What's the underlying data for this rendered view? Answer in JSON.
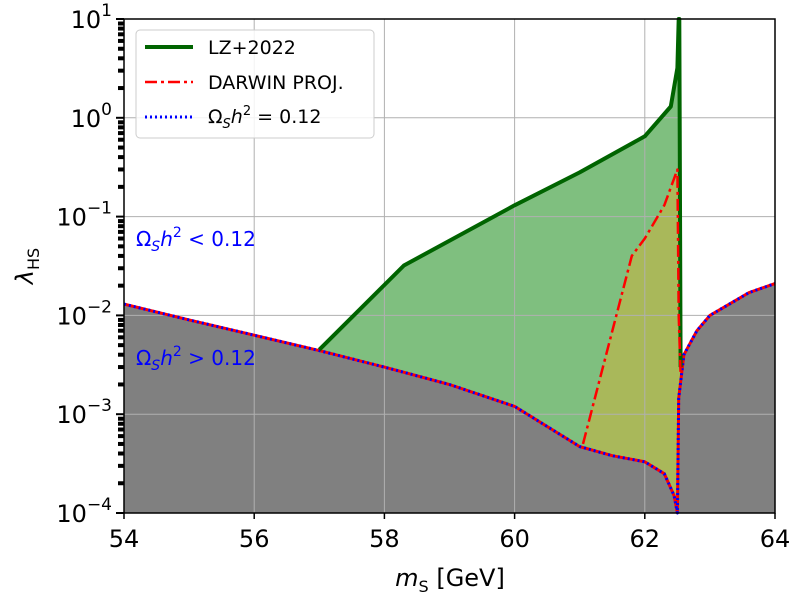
{
  "chart_data": {
    "type": "line",
    "xlabel": {
      "main": "m",
      "sub": "S",
      "suffix": " [GeV]"
    },
    "ylabel": {
      "main": "λ",
      "sub": "HS"
    },
    "xlim": [
      54,
      64
    ],
    "ylim": [
      0.0001,
      10
    ],
    "yscale": "log",
    "grid": true,
    "legend_position": "top-left",
    "x_ticks": [
      54,
      56,
      58,
      60,
      62,
      64
    ],
    "x_tick_labels": [
      "54",
      "56",
      "58",
      "60",
      "62",
      "64"
    ],
    "y_ticks": [
      -4,
      -3,
      -2,
      -1,
      0,
      1
    ],
    "y_tick_labels": [
      {
        "base": "10",
        "exp": "−4"
      },
      {
        "base": "10",
        "exp": "−3"
      },
      {
        "base": "10",
        "exp": "−2"
      },
      {
        "base": "10",
        "exp": "−1"
      },
      {
        "base": "10",
        "exp": "0"
      },
      {
        "base": "10",
        "exp": "1"
      }
    ],
    "series": [
      {
        "name": "LZ+2022",
        "color": "#006400",
        "style": "solid",
        "fill": "#7fbf7f",
        "x": [
          57.0,
          58.3,
          60.0,
          61.0,
          62.0,
          62.4,
          62.5,
          62.52,
          62.53,
          62.55
        ],
        "y": [
          0.0045,
          0.032,
          0.13,
          0.28,
          0.65,
          1.3,
          3.2,
          10,
          10,
          0.003
        ]
      },
      {
        "name": "DARWIN PROJ.",
        "color": "#ff0000",
        "style": "dashdot",
        "fill": "#a9b85a",
        "x": [
          61.05,
          61.8,
          62.0,
          62.3,
          62.5,
          62.52,
          62.55
        ],
        "y": [
          0.0005,
          0.04,
          0.06,
          0.13,
          0.3,
          0.01,
          0.0025
        ]
      },
      {
        "name": "Ω_S h^2 = 0.12",
        "color": "#0000ff",
        "style": "dotted",
        "fill": "#808080",
        "x": [
          54,
          55,
          56,
          57,
          58,
          59,
          60,
          60.5,
          61,
          61.5,
          62,
          62.3,
          62.45,
          62.5,
          62.52,
          62.6,
          62.8,
          63.0,
          63.3,
          63.6,
          64
        ],
        "y": [
          0.013,
          0.009,
          0.0063,
          0.0044,
          0.003,
          0.002,
          0.0012,
          0.00075,
          0.00047,
          0.00038,
          0.00033,
          0.00025,
          0.00015,
          0.0001,
          0.00145,
          0.004,
          0.007,
          0.01,
          0.013,
          0.017,
          0.021
        ]
      }
    ],
    "legend": {
      "entries": [
        {
          "label": "LZ+2022",
          "color": "#006400",
          "style": "solid"
        },
        {
          "label": "DARWIN PROJ.",
          "color": "#ff0000",
          "style": "dashdot"
        },
        {
          "label_main": "Ω",
          "label_sub": "S",
          "label_rest": "h",
          "label_sup": "2",
          "label_tail": " = 0.12",
          "color": "#0000ff",
          "style": "dotted"
        }
      ]
    },
    "annotations": [
      {
        "main": "Ω",
        "sub": "S",
        "rest": "h",
        "sup": "2",
        "tail": " < 0.12",
        "color": "#0000ff"
      },
      {
        "main": "Ω",
        "sub": "S",
        "rest": "h",
        "sup": "2",
        "tail": " > 0.12",
        "color": "#0000ff"
      }
    ]
  }
}
